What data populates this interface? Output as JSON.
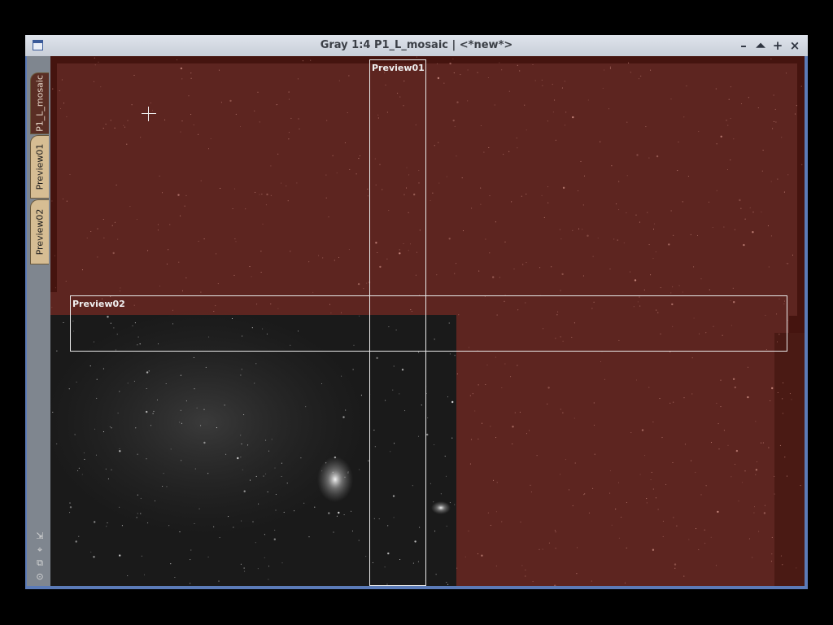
{
  "window": {
    "title": "Gray 1:4 P1_L_mosaic | <*new*>",
    "buttons": {
      "minimize": "–",
      "shade": "⏶",
      "maximize": "+",
      "close": "×"
    }
  },
  "tabs": [
    {
      "label": "P1_L_mosaic",
      "active": true
    },
    {
      "label": "Preview01",
      "active": false
    },
    {
      "label": "Preview02",
      "active": false
    }
  ],
  "controls": {
    "shrink": "⇲",
    "fit": "⌖",
    "clone": "⧉",
    "center": "⊙"
  },
  "previews": [
    {
      "label": "Preview01"
    },
    {
      "label": "Preview02"
    }
  ],
  "colors": {
    "mask": "#5d2520",
    "window_accent": "#5b7bb8",
    "tab_active": "#5a2e24",
    "tab_inactive": "#d6bd93"
  }
}
